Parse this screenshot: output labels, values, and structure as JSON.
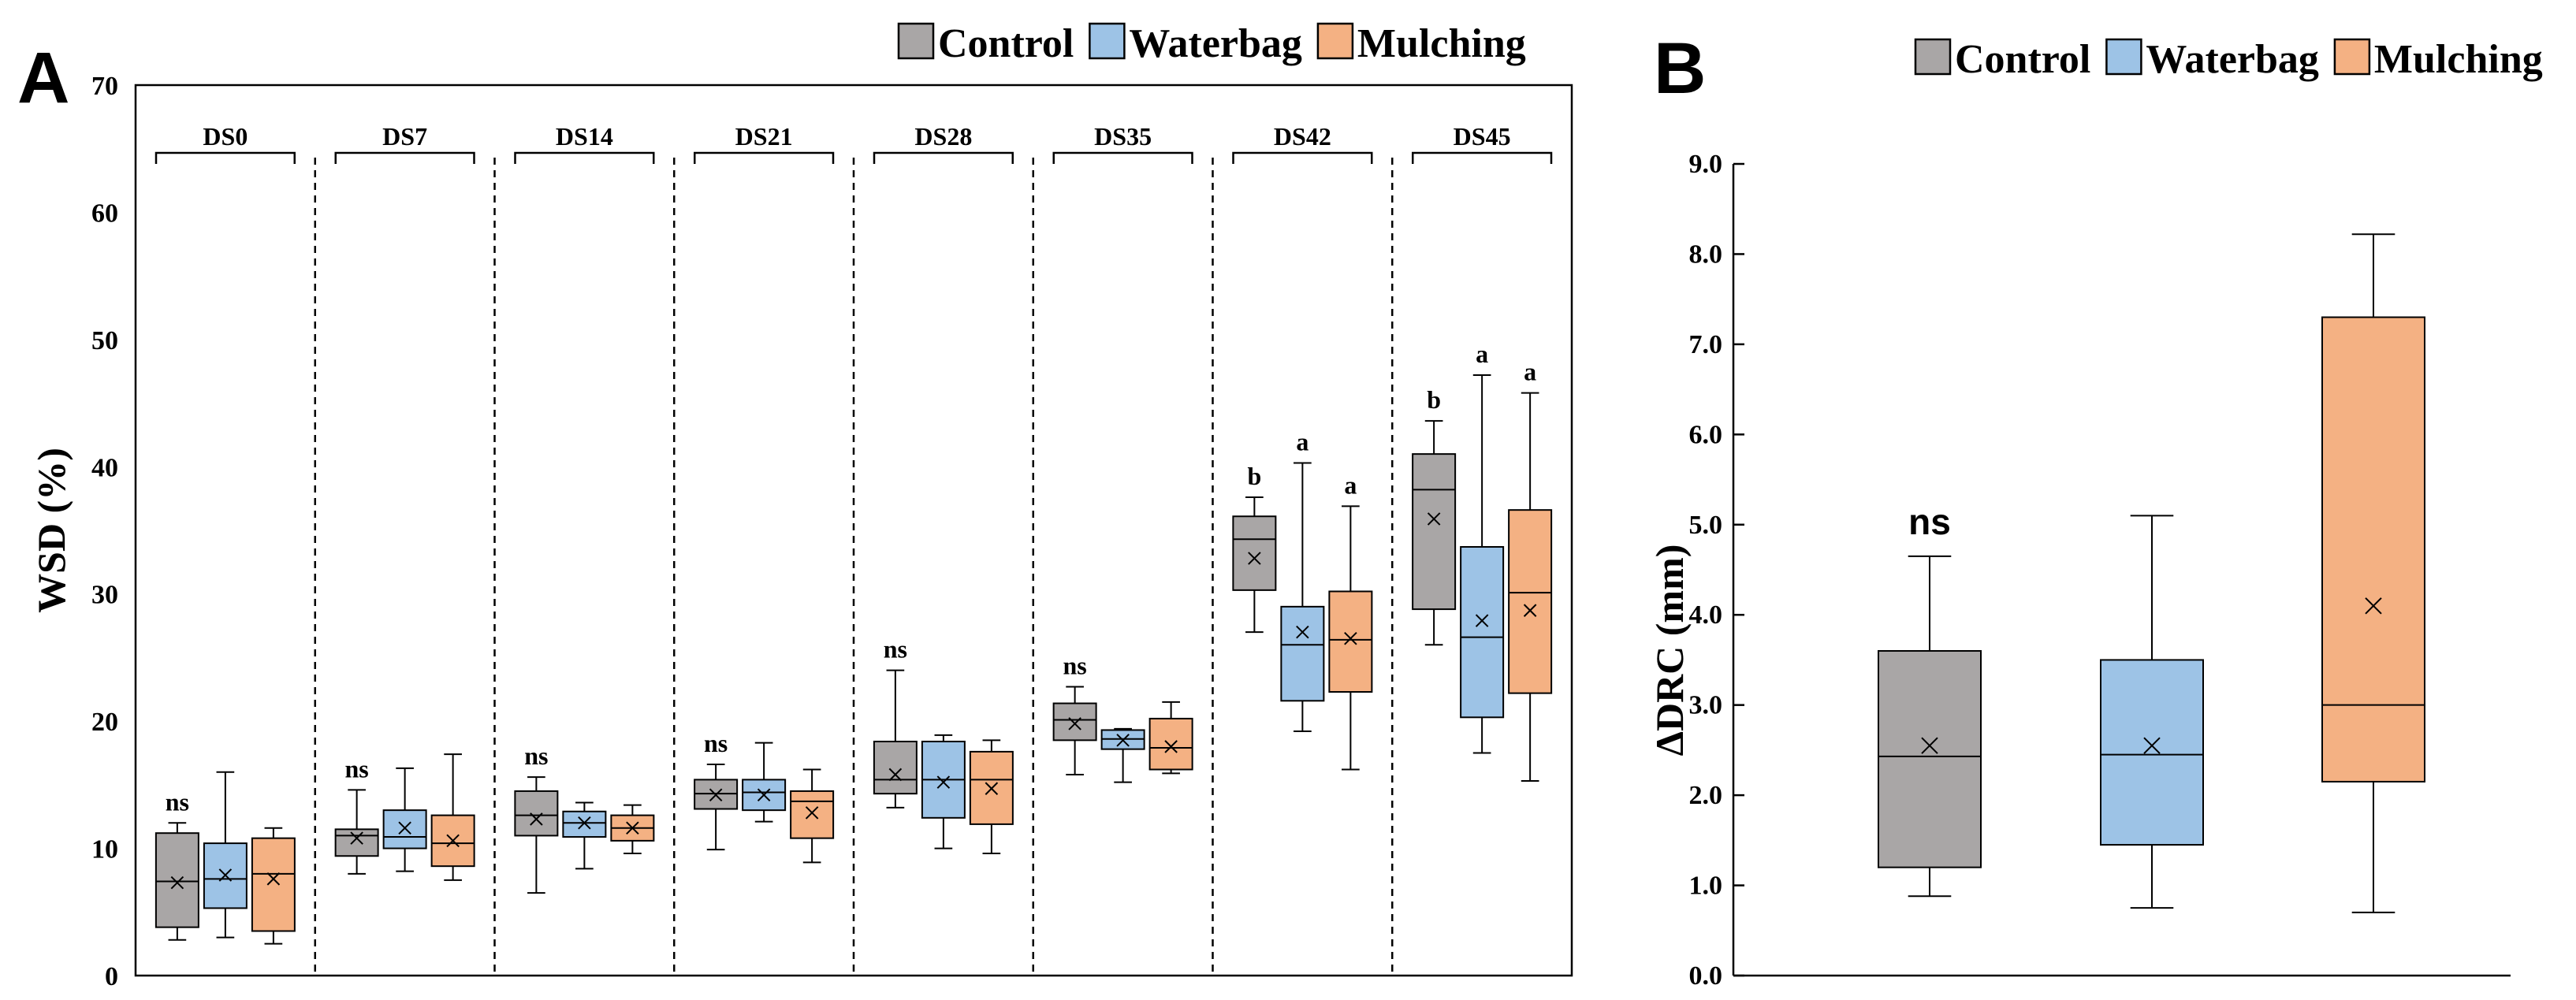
{
  "colors": {
    "control": "#a9a6a6",
    "waterbag": "#9dc3e6",
    "mulching": "#f4b183",
    "stroke": "#000000"
  },
  "legend": [
    {
      "key": "control",
      "label": "Control"
    },
    {
      "key": "waterbag",
      "label": "Waterbag"
    },
    {
      "key": "mulching",
      "label": "Mulching"
    }
  ],
  "chart_data": [
    {
      "panel": "A",
      "type": "box",
      "ylabel": "WSD (%)",
      "ylim": [
        0,
        70
      ],
      "yticks": [
        0,
        10,
        20,
        30,
        40,
        50,
        60,
        70
      ],
      "ytick_labels": [
        "0",
        "10",
        "20",
        "30",
        "40",
        "50",
        "60",
        "70"
      ],
      "series_order": [
        "Control",
        "Waterbag",
        "Mulching"
      ],
      "groups": [
        {
          "label": "DS0",
          "sig": [
            "ns"
          ],
          "boxes": [
            {
              "min": 2.8,
              "q1": 3.8,
              "median": 7.4,
              "q3": 11.2,
              "max": 12.0,
              "mean": 7.3
            },
            {
              "min": 3.0,
              "q1": 5.3,
              "median": 7.6,
              "q3": 10.4,
              "max": 16.0,
              "mean": 7.9
            },
            {
              "min": 2.5,
              "q1": 3.5,
              "median": 8.0,
              "q3": 10.8,
              "max": 11.6,
              "mean": 7.6
            }
          ]
        },
        {
          "label": "DS7",
          "sig": [
            "ns"
          ],
          "boxes": [
            {
              "min": 8.0,
              "q1": 9.4,
              "median": 11.0,
              "q3": 11.5,
              "max": 14.6,
              "mean": 10.8
            },
            {
              "min": 8.2,
              "q1": 10.0,
              "median": 10.9,
              "q3": 13.0,
              "max": 16.3,
              "mean": 11.6
            },
            {
              "min": 7.5,
              "q1": 8.6,
              "median": 10.4,
              "q3": 12.6,
              "max": 17.4,
              "mean": 10.6
            }
          ]
        },
        {
          "label": "DS14",
          "sig": [
            "ns"
          ],
          "boxes": [
            {
              "min": 6.5,
              "q1": 11.0,
              "median": 12.6,
              "q3": 14.5,
              "max": 15.6,
              "mean": 12.3
            },
            {
              "min": 8.4,
              "q1": 10.9,
              "median": 12.0,
              "q3": 12.9,
              "max": 13.6,
              "mean": 12.0
            },
            {
              "min": 9.6,
              "q1": 10.6,
              "median": 11.6,
              "q3": 12.6,
              "max": 13.4,
              "mean": 11.6
            }
          ]
        },
        {
          "label": "DS21",
          "sig": [
            "ns"
          ],
          "boxes": [
            {
              "min": 9.9,
              "q1": 13.1,
              "median": 14.3,
              "q3": 15.4,
              "max": 16.6,
              "mean": 14.2
            },
            {
              "min": 12.1,
              "q1": 13.0,
              "median": 14.4,
              "q3": 15.4,
              "max": 18.3,
              "mean": 14.2
            },
            {
              "min": 8.9,
              "q1": 10.8,
              "median": 13.7,
              "q3": 14.5,
              "max": 16.2,
              "mean": 12.8
            }
          ]
        },
        {
          "label": "DS28",
          "sig": [
            "ns"
          ],
          "boxes": [
            {
              "min": 13.2,
              "q1": 14.3,
              "median": 15.4,
              "q3": 18.4,
              "max": 24.0,
              "mean": 15.8
            },
            {
              "min": 10.0,
              "q1": 12.4,
              "median": 15.4,
              "q3": 18.4,
              "max": 18.9,
              "mean": 15.2
            },
            {
              "min": 9.6,
              "q1": 11.9,
              "median": 15.4,
              "q3": 17.6,
              "max": 18.5,
              "mean": 14.7
            }
          ]
        },
        {
          "label": "DS35",
          "sig": [
            "ns"
          ],
          "boxes": [
            {
              "min": 15.8,
              "q1": 18.5,
              "median": 20.1,
              "q3": 21.4,
              "max": 22.7,
              "mean": 19.8
            },
            {
              "min": 15.2,
              "q1": 17.8,
              "median": 18.6,
              "q3": 19.3,
              "max": 19.4,
              "mean": 18.5
            },
            {
              "min": 15.9,
              "q1": 16.2,
              "median": 17.9,
              "q3": 20.2,
              "max": 21.5,
              "mean": 18.0
            }
          ]
        },
        {
          "label": "DS42",
          "sig": [
            "b",
            "a",
            "a"
          ],
          "boxes": [
            {
              "min": 27.0,
              "q1": 30.3,
              "median": 34.3,
              "q3": 36.1,
              "max": 37.6,
              "mean": 32.8
            },
            {
              "min": 19.2,
              "q1": 21.6,
              "median": 26.0,
              "q3": 29.0,
              "max": 40.3,
              "mean": 27.0
            },
            {
              "min": 16.2,
              "q1": 22.3,
              "median": 26.4,
              "q3": 30.2,
              "max": 36.9,
              "mean": 26.5
            }
          ]
        },
        {
          "label": "DS45",
          "sig": [
            "b",
            "a",
            "a"
          ],
          "boxes": [
            {
              "min": 26.0,
              "q1": 28.8,
              "median": 38.2,
              "q3": 41.0,
              "max": 43.6,
              "mean": 35.9
            },
            {
              "min": 17.5,
              "q1": 20.3,
              "median": 26.6,
              "q3": 33.7,
              "max": 47.2,
              "mean": 27.9
            },
            {
              "min": 15.3,
              "q1": 22.2,
              "median": 30.1,
              "q3": 36.6,
              "max": 45.8,
              "mean": 28.7
            }
          ]
        }
      ]
    },
    {
      "panel": "B",
      "type": "box",
      "ylabel": "ΔDRC (mm)",
      "ylim": [
        0,
        9
      ],
      "yticks": [
        0,
        1,
        2,
        3,
        4,
        5,
        6,
        7,
        8,
        9
      ],
      "ytick_labels": [
        "0.0",
        "1.0",
        "2.0",
        "3.0",
        "4.0",
        "5.0",
        "6.0",
        "7.0",
        "8.0",
        "9.0"
      ],
      "sig": "ns",
      "boxes": [
        {
          "series": "Control",
          "min": 0.88,
          "q1": 1.2,
          "median": 2.43,
          "q3": 3.6,
          "max": 4.65,
          "mean": 2.55
        },
        {
          "series": "Waterbag",
          "min": 0.75,
          "q1": 1.45,
          "median": 2.45,
          "q3": 3.5,
          "max": 5.1,
          "mean": 2.55
        },
        {
          "series": "Mulching",
          "min": 0.7,
          "q1": 2.15,
          "median": 3.0,
          "q3": 7.3,
          "max": 8.22,
          "mean": 4.1
        }
      ]
    }
  ]
}
